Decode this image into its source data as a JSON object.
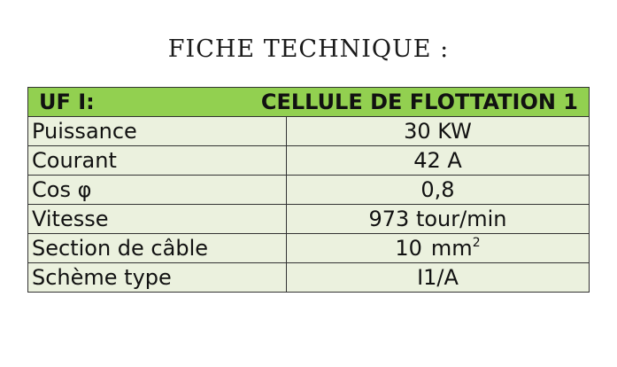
{
  "title": "FICHE TECHNIQUE :",
  "table": {
    "header": {
      "unit": "UF I:",
      "equipment": "CELLULE DE FLOTTATION 1"
    },
    "rows": [
      {
        "label": "Puissance",
        "value": "30 KW"
      },
      {
        "label": "Courant",
        "value": "42 A"
      },
      {
        "label": "Cos φ",
        "value": "0,8"
      },
      {
        "label": "Vitesse",
        "value": "973 tour/min"
      },
      {
        "label": "Section de câble",
        "value": "10",
        "unit": "mm",
        "unit_exponent": "2"
      },
      {
        "label": "Schème type",
        "value": "I1/A"
      }
    ]
  }
}
